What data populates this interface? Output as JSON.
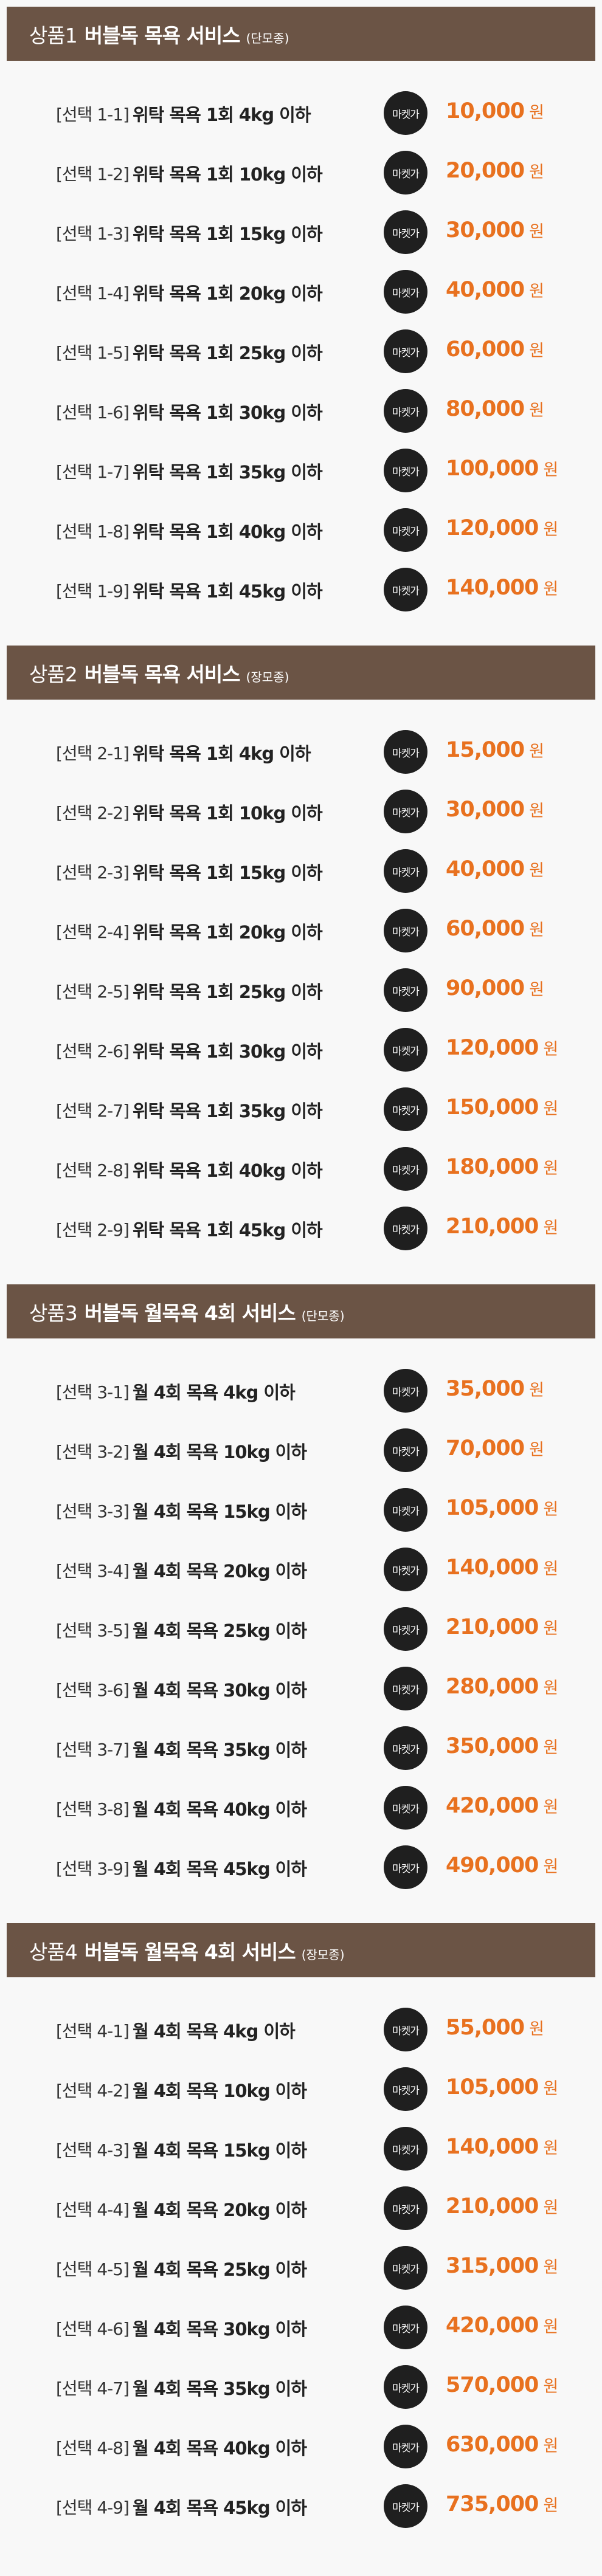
{
  "badge_label": "마켓가",
  "currency": "원",
  "sections": [
    {
      "num": "상품1",
      "title": "버블독 목욕 서비스",
      "sub": "(단모종)",
      "items": [
        {
          "code": "[선택 1-1]",
          "desc": "위탁 목욕 1회 4kg 이하",
          "price": "10,000"
        },
        {
          "code": "[선택 1-2]",
          "desc": "위탁 목욕 1회 10kg 이하",
          "price": "20,000"
        },
        {
          "code": "[선택 1-3]",
          "desc": "위탁 목욕 1회 15kg 이하",
          "price": "30,000"
        },
        {
          "code": "[선택 1-4]",
          "desc": "위탁 목욕 1회 20kg 이하",
          "price": "40,000"
        },
        {
          "code": "[선택 1-5]",
          "desc": "위탁 목욕 1회 25kg 이하",
          "price": "60,000"
        },
        {
          "code": "[선택 1-6]",
          "desc": "위탁 목욕 1회 30kg 이하",
          "price": "80,000"
        },
        {
          "code": "[선택 1-7]",
          "desc": "위탁 목욕 1회 35kg 이하",
          "price": "100,000"
        },
        {
          "code": "[선택 1-8]",
          "desc": "위탁 목욕 1회 40kg 이하",
          "price": "120,000"
        },
        {
          "code": "[선택 1-9]",
          "desc": "위탁 목욕 1회 45kg 이하",
          "price": "140,000"
        }
      ]
    },
    {
      "num": "상품2",
      "title": "버블독 목욕 서비스",
      "sub": "(장모종)",
      "items": [
        {
          "code": "[선택 2-1]",
          "desc": "위탁 목욕 1회 4kg 이하",
          "price": "15,000"
        },
        {
          "code": "[선택 2-2]",
          "desc": "위탁 목욕 1회 10kg 이하",
          "price": "30,000"
        },
        {
          "code": "[선택 2-3]",
          "desc": "위탁 목욕 1회 15kg 이하",
          "price": "40,000"
        },
        {
          "code": "[선택 2-4]",
          "desc": "위탁 목욕 1회 20kg 이하",
          "price": "60,000"
        },
        {
          "code": "[선택 2-5]",
          "desc": "위탁 목욕 1회 25kg 이하",
          "price": "90,000"
        },
        {
          "code": "[선택 2-6]",
          "desc": "위탁 목욕 1회 30kg 이하",
          "price": "120,000"
        },
        {
          "code": "[선택 2-7]",
          "desc": "위탁 목욕 1회 35kg 이하",
          "price": "150,000"
        },
        {
          "code": "[선택 2-8]",
          "desc": "위탁 목욕 1회 40kg 이하",
          "price": "180,000"
        },
        {
          "code": "[선택 2-9]",
          "desc": "위탁 목욕 1회 45kg 이하",
          "price": "210,000"
        }
      ]
    },
    {
      "num": "상품3",
      "title": "버블독 월목욕 4회 서비스",
      "sub": "(단모종)",
      "items": [
        {
          "code": "[선택 3-1]",
          "desc": "월 4회 목욕 4kg 이하",
          "price": "35,000"
        },
        {
          "code": "[선택 3-2]",
          "desc": "월 4회 목욕 10kg 이하",
          "price": "70,000"
        },
        {
          "code": "[선택 3-3]",
          "desc": "월 4회 목욕 15kg 이하",
          "price": "105,000"
        },
        {
          "code": "[선택 3-4]",
          "desc": "월 4회 목욕 20kg 이하",
          "price": "140,000"
        },
        {
          "code": "[선택 3-5]",
          "desc": "월 4회 목욕 25kg 이하",
          "price": "210,000"
        },
        {
          "code": "[선택 3-6]",
          "desc": "월 4회 목욕 30kg 이하",
          "price": "280,000"
        },
        {
          "code": "[선택 3-7]",
          "desc": "월 4회 목욕 35kg 이하",
          "price": "350,000"
        },
        {
          "code": "[선택 3-8]",
          "desc": "월 4회 목욕 40kg 이하",
          "price": "420,000"
        },
        {
          "code": "[선택 3-9]",
          "desc": "월 4회 목욕 45kg 이하",
          "price": "490,000"
        }
      ]
    },
    {
      "num": "상품4",
      "title": "버블독 월목욕 4회 서비스",
      "sub": "(장모종)",
      "items": [
        {
          "code": "[선택 4-1]",
          "desc": "월 4회 목욕 4kg 이하",
          "price": "55,000"
        },
        {
          "code": "[선택 4-2]",
          "desc": "월 4회 목욕 10kg 이하",
          "price": "105,000"
        },
        {
          "code": "[선택 4-3]",
          "desc": "월 4회 목욕 15kg 이하",
          "price": "140,000"
        },
        {
          "code": "[선택 4-4]",
          "desc": "월 4회 목욕 20kg 이하",
          "price": "210,000"
        },
        {
          "code": "[선택 4-5]",
          "desc": "월 4회 목욕 25kg 이하",
          "price": "315,000"
        },
        {
          "code": "[선택 4-6]",
          "desc": "월 4회 목욕 30kg 이하",
          "price": "420,000"
        },
        {
          "code": "[선택 4-7]",
          "desc": "월 4회 목욕 35kg 이하",
          "price": "570,000"
        },
        {
          "code": "[선택 4-8]",
          "desc": "월 4회 목욕 40kg 이하",
          "price": "630,000"
        },
        {
          "code": "[선택 4-9]",
          "desc": "월 4회 목욕 45kg 이하",
          "price": "735,000"
        }
      ]
    }
  ]
}
